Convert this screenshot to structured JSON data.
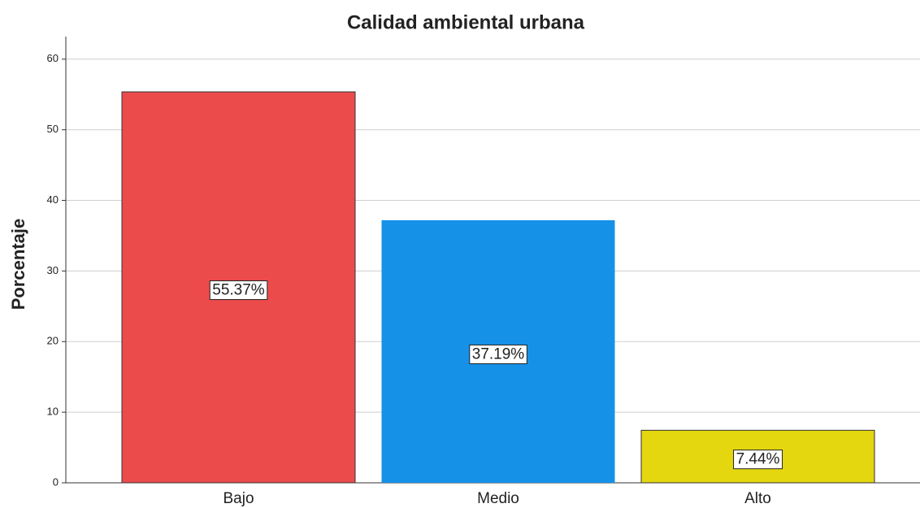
{
  "chart_data": {
    "type": "bar",
    "title": "Calidad ambiental urbana",
    "y_label": "Porcentaje",
    "categories": [
      "Bajo",
      "Medio",
      "Alto"
    ],
    "values": [
      55.37,
      37.19,
      7.44
    ],
    "value_labels": [
      "55.37%",
      "37.19%",
      "7.44%"
    ],
    "colors": [
      "#ec4b4b",
      "#1591e8",
      "#e4d60f"
    ],
    "ylim": [
      0,
      63.2
    ],
    "yticks": [
      0,
      10,
      20,
      30,
      40,
      50,
      60
    ],
    "grid": true
  }
}
